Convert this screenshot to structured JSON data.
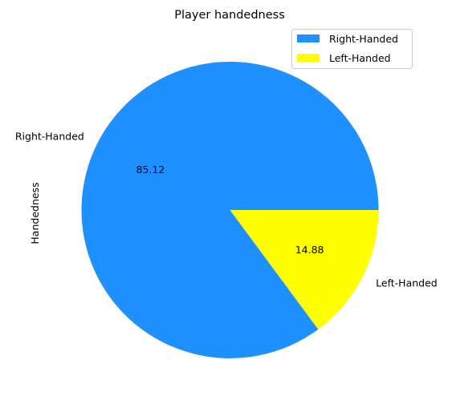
{
  "chart_data": {
    "type": "pie",
    "title": "Player handedness",
    "ylabel": "Handedness",
    "slices": [
      {
        "label": "Right-Handed",
        "value": 85.12,
        "value_label": "85.12",
        "color": "#1E90FF"
      },
      {
        "label": "Left-Handed",
        "value": 14.88,
        "value_label": "14.88",
        "color": "#FFFF00"
      }
    ],
    "start_angle_deg": 0,
    "direction": "counterclockwise",
    "legend": {
      "position": "upper right",
      "entries": [
        "Right-Handed",
        "Left-Handed"
      ]
    }
  }
}
